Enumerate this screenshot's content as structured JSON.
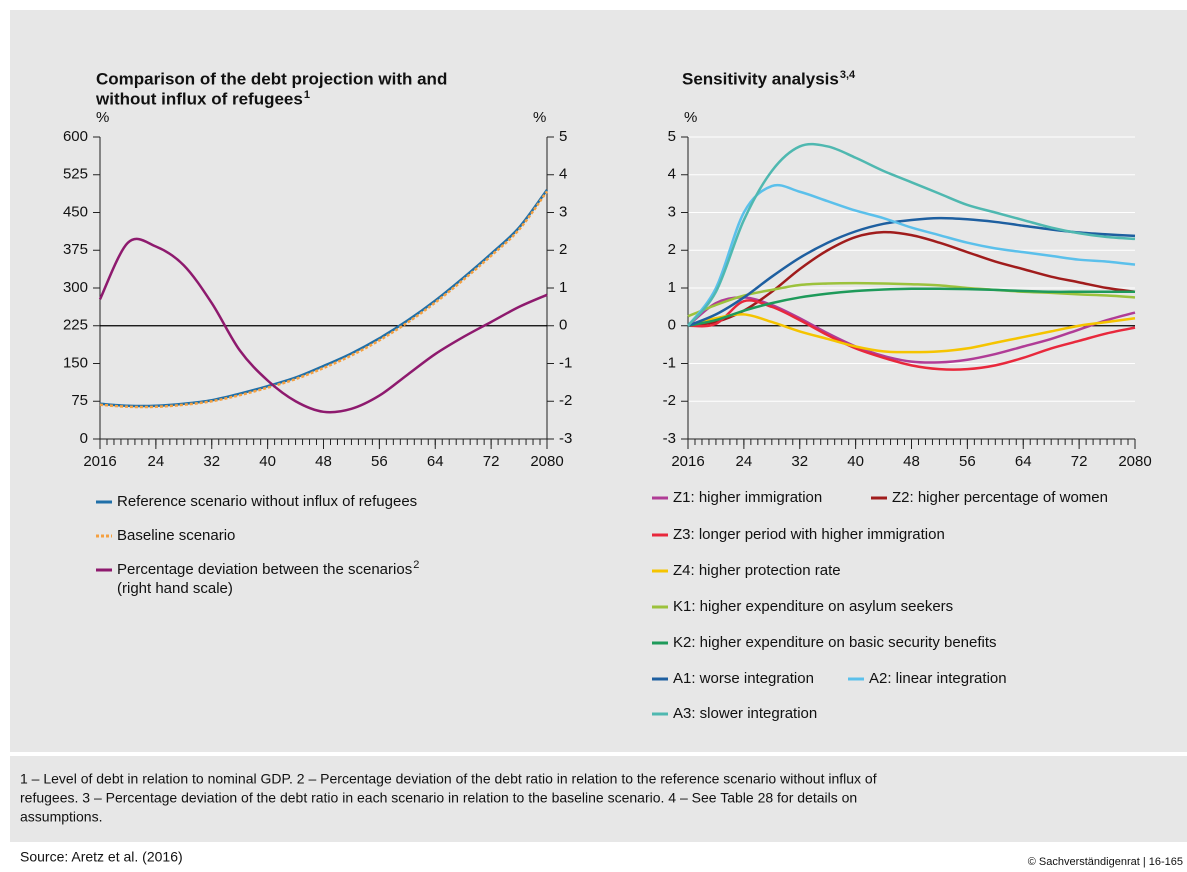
{
  "chart_data": [
    {
      "type": "line",
      "title": [
        "Comparison of the debt projection with and",
        "without influx of refugees"
      ],
      "title_note": "1",
      "y_unit": "%",
      "y2_unit": "%",
      "x": [
        2016,
        2020,
        2024,
        2028,
        2032,
        2036,
        2040,
        2044,
        2048,
        2052,
        2056,
        2060,
        2064,
        2068,
        2072,
        2076,
        2080
      ],
      "xlim": [
        2016,
        2080
      ],
      "xminor_step": 1,
      "xticks": [
        {
          "value": 2016,
          "label": "2016"
        },
        {
          "value": 2024,
          "label": "24"
        },
        {
          "value": 2032,
          "label": "32"
        },
        {
          "value": 2040,
          "label": "40"
        },
        {
          "value": 2048,
          "label": "48"
        },
        {
          "value": 2056,
          "label": "56"
        },
        {
          "value": 2064,
          "label": "64"
        },
        {
          "value": 2072,
          "label": "72"
        },
        {
          "value": 2080,
          "label": "2080"
        }
      ],
      "ylim": [
        0,
        600
      ],
      "yticks": [
        0,
        75,
        150,
        225,
        300,
        375,
        450,
        525,
        600
      ],
      "y2lim": [
        -3,
        5
      ],
      "y2ticks": [
        -3,
        -2,
        -1,
        0,
        1,
        2,
        3,
        4,
        5
      ],
      "zero_line": true,
      "grid": false,
      "series": [
        {
          "name": "Reference scenario without influx of refugees",
          "color": "#1f6fa8",
          "style": "solid",
          "values": [
            70,
            66,
            66,
            70,
            77,
            90,
            105,
            122,
            145,
            170,
            200,
            235,
            275,
            320,
            368,
            420,
            495
          ]
        },
        {
          "name": "Baseline scenario",
          "color": "#f5a040",
          "style": "dotted",
          "values": [
            68,
            64,
            64,
            68,
            75,
            87,
            102,
            119,
            141,
            166,
            196,
            231,
            271,
            316,
            364,
            416,
            492
          ]
        },
        {
          "name": "Percentage deviation between the scenarios",
          "name_note": "2",
          "note": "(right hand scale)",
          "color": "#8e1a6e",
          "style": "solid",
          "axis": "y2",
          "values": [
            0.7,
            2.2,
            2.1,
            1.6,
            0.6,
            -0.65,
            -1.45,
            -2.0,
            -2.28,
            -2.2,
            -1.85,
            -1.3,
            -0.75,
            -0.3,
            0.1,
            0.5,
            0.82
          ]
        }
      ]
    },
    {
      "type": "line",
      "title": [
        "Sensitivity analysis"
      ],
      "title_note": "3,4",
      "y_unit": "%",
      "x": [
        2016,
        2020,
        2024,
        2028,
        2032,
        2036,
        2040,
        2044,
        2048,
        2052,
        2056,
        2060,
        2064,
        2068,
        2072,
        2076,
        2080
      ],
      "xlim": [
        2016,
        2080
      ],
      "xminor_step": 1,
      "xticks": [
        {
          "value": 2016,
          "label": "2016"
        },
        {
          "value": 2024,
          "label": "24"
        },
        {
          "value": 2032,
          "label": "32"
        },
        {
          "value": 2040,
          "label": "40"
        },
        {
          "value": 2048,
          "label": "48"
        },
        {
          "value": 2056,
          "label": "56"
        },
        {
          "value": 2064,
          "label": "64"
        },
        {
          "value": 2072,
          "label": "72"
        },
        {
          "value": 2080,
          "label": "2080"
        }
      ],
      "ylim": [
        -3,
        5
      ],
      "yticks": [
        -3,
        -2,
        -1,
        0,
        1,
        2,
        3,
        4,
        5
      ],
      "zero_line": true,
      "grid": true,
      "series": [
        {
          "name": "Z1: higher immigration",
          "color": "#b03c96",
          "values": [
            0,
            0.6,
            0.75,
            0.55,
            0.2,
            -0.2,
            -0.55,
            -0.8,
            -0.95,
            -0.97,
            -0.9,
            -0.75,
            -0.55,
            -0.35,
            -0.1,
            0.15,
            0.35
          ]
        },
        {
          "name": "Z2: higher percentage of women",
          "color": "#a01c1c",
          "values": [
            0,
            0.1,
            0.4,
            0.9,
            1.5,
            2.0,
            2.35,
            2.48,
            2.4,
            2.2,
            1.95,
            1.7,
            1.5,
            1.3,
            1.15,
            1.0,
            0.9
          ]
        },
        {
          "name": "Z3: longer period with higher immigration",
          "color": "#e8283c",
          "values": [
            0,
            0.05,
            0.65,
            0.5,
            0.15,
            -0.25,
            -0.6,
            -0.85,
            -1.05,
            -1.15,
            -1.15,
            -1.05,
            -0.85,
            -0.6,
            -0.4,
            -0.2,
            -0.05
          ]
        },
        {
          "name": "Z4: higher protection rate",
          "color": "#f5c400",
          "values": [
            0,
            0.2,
            0.3,
            0.1,
            -0.15,
            -0.35,
            -0.55,
            -0.68,
            -0.7,
            -0.68,
            -0.6,
            -0.45,
            -0.3,
            -0.15,
            0,
            0.1,
            0.2
          ]
        },
        {
          "name": "K1: higher expenditure on asylum seekers",
          "color": "#9cc23c",
          "values": [
            0.25,
            0.55,
            0.8,
            0.95,
            1.08,
            1.12,
            1.13,
            1.12,
            1.1,
            1.07,
            1.0,
            0.95,
            0.9,
            0.87,
            0.83,
            0.8,
            0.75
          ]
        },
        {
          "name": "K2: higher expenditure on basic security benefits",
          "color": "#1e9a5a",
          "values": [
            0,
            0.15,
            0.4,
            0.6,
            0.75,
            0.85,
            0.92,
            0.96,
            0.98,
            0.98,
            0.97,
            0.95,
            0.92,
            0.9,
            0.9,
            0.9,
            0.9
          ]
        },
        {
          "name": "A1: worse integration",
          "color": "#1e5fa0",
          "values": [
            0,
            0.3,
            0.75,
            1.3,
            1.8,
            2.2,
            2.5,
            2.7,
            2.8,
            2.85,
            2.82,
            2.75,
            2.65,
            2.55,
            2.47,
            2.42,
            2.38
          ]
        },
        {
          "name": "A2: linear integration",
          "color": "#5bc0eb",
          "values": [
            0,
            1.0,
            3.0,
            3.7,
            3.55,
            3.3,
            3.05,
            2.85,
            2.6,
            2.4,
            2.2,
            2.05,
            1.95,
            1.85,
            1.75,
            1.7,
            1.62
          ]
        },
        {
          "name": "A3: slower integration",
          "color": "#4fb8b0",
          "values": [
            0,
            0.9,
            2.8,
            4.1,
            4.75,
            4.75,
            4.45,
            4.1,
            3.8,
            3.5,
            3.2,
            3.0,
            2.8,
            2.6,
            2.45,
            2.35,
            2.3
          ]
        }
      ]
    }
  ],
  "footnotes": [
    "1 – Level of debt in relation to nominal GDP.  2 – Percentage deviation of the debt ratio in relation to the reference scenario without influx of",
    "refugees.  3 – Percentage deviation of the debt ratio in each scenario in relation to the baseline scenario.  4 – See Table 28 for details on",
    "assumptions."
  ],
  "source": "Source: Aretz et al. (2016)",
  "copyright": "© Sachverständigenrat | 16-165"
}
